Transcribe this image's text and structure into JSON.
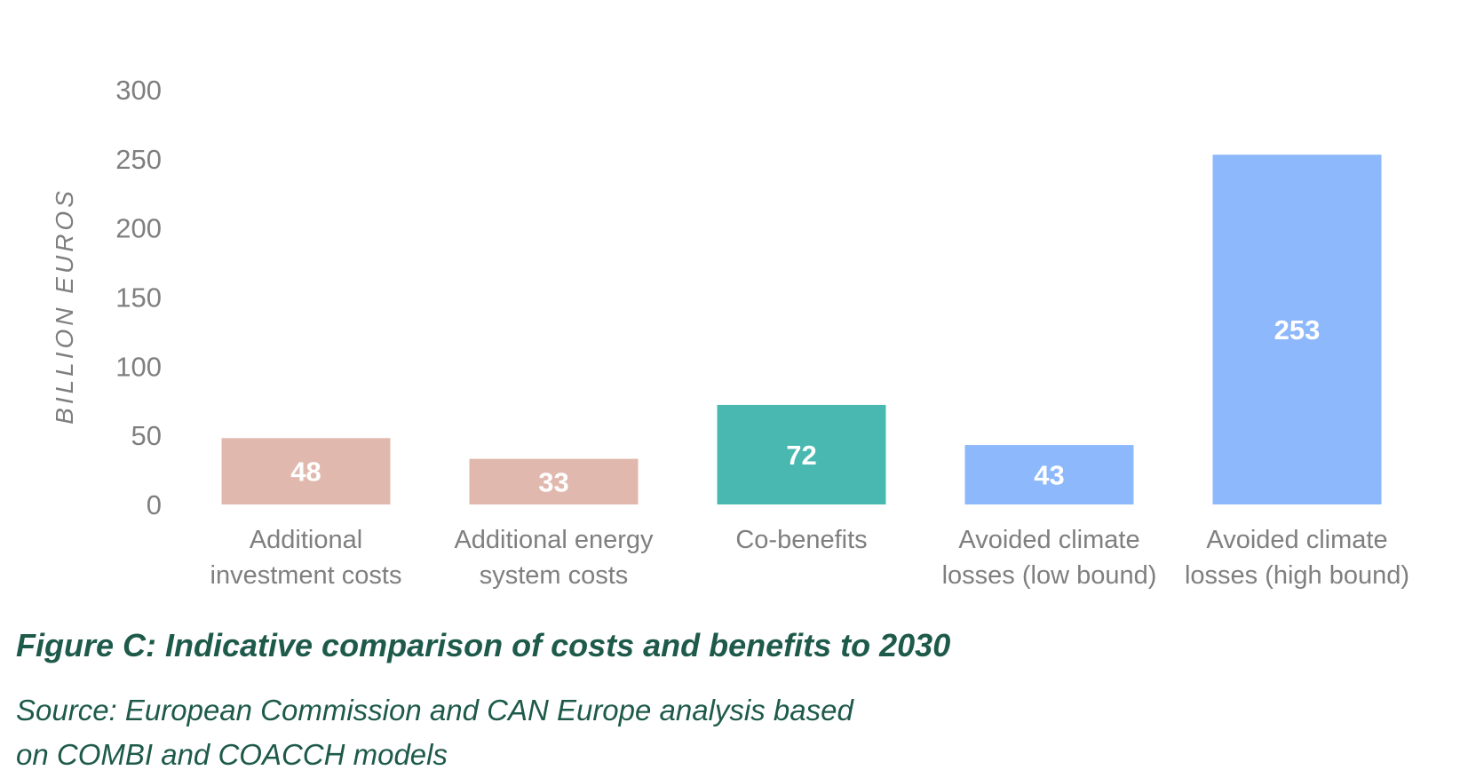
{
  "chart_data": {
    "type": "bar",
    "title": "Figure C: Indicative comparison of costs and benefits to 2030",
    "xlabel": "",
    "ylabel": "BILLION EUROS",
    "ylim": [
      0,
      300
    ],
    "yticks": [
      0,
      50,
      100,
      150,
      200,
      250,
      300
    ],
    "grid": false,
    "categories": [
      [
        "Additional",
        "investment costs"
      ],
      [
        "Additional energy",
        "system costs"
      ],
      [
        "Co-benefits"
      ],
      [
        "Avoided climate",
        "losses (low bound)"
      ],
      [
        "Avoided climate",
        "losses (high bound)"
      ]
    ],
    "values": [
      48,
      33,
      72,
      43,
      253
    ],
    "colors": [
      "#e1b8ae",
      "#e1b8ae",
      "#49b8b1",
      "#8db8fb",
      "#8db8fb"
    ]
  },
  "caption": {
    "source_line1": "Source: European Commission and CAN Europe analysis based",
    "source_line2": "on COMBI and COACCH models"
  }
}
